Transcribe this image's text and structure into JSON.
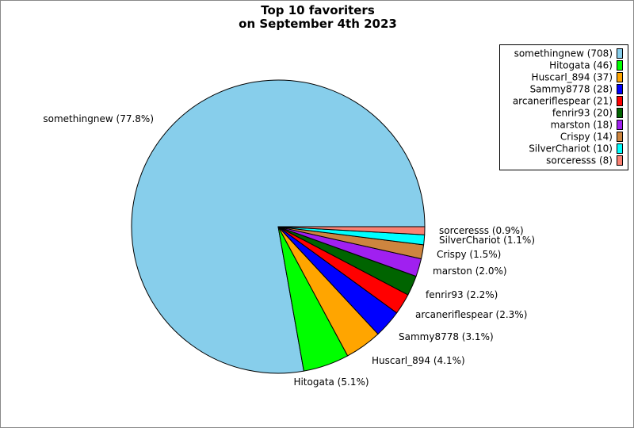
{
  "chart_data": {
    "type": "pie",
    "title": [
      "Top 10 favoriters",
      "on September 4th 2023"
    ],
    "start_angle_deg": 0,
    "direction": "counterclockwise",
    "legend_position": "top-right",
    "slices": [
      {
        "name": "somethingnew",
        "value": 708,
        "percent": "77.8%",
        "color": "#87ceeb"
      },
      {
        "name": "Hitogata",
        "value": 46,
        "percent": "5.1%",
        "color": "#00ff00"
      },
      {
        "name": "Huscarl_894",
        "value": 37,
        "percent": "4.1%",
        "color": "#ffa500"
      },
      {
        "name": "Sammy8778",
        "value": 28,
        "percent": "3.1%",
        "color": "#0000ff"
      },
      {
        "name": "arcaneriflespear",
        "value": 21,
        "percent": "2.3%",
        "color": "#ff0000"
      },
      {
        "name": "fenrir93",
        "value": 20,
        "percent": "2.2%",
        "color": "#006400"
      },
      {
        "name": "marston",
        "value": 18,
        "percent": "2.0%",
        "color": "#a020f0"
      },
      {
        "name": "Crispy",
        "value": 14,
        "percent": "1.5%",
        "color": "#cd853f"
      },
      {
        "name": "SilverChariot",
        "value": 10,
        "percent": "1.1%",
        "color": "#00ffff"
      },
      {
        "name": "sorceresss",
        "value": 8,
        "percent": "0.9%",
        "color": "#fa8072"
      }
    ]
  }
}
